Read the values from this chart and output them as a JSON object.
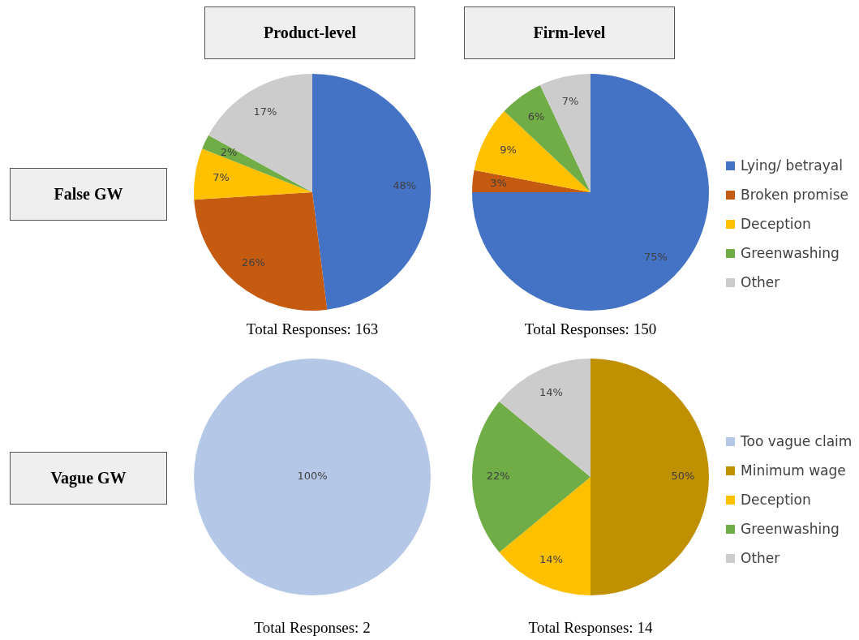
{
  "chart_data": [
    {
      "type": "pie",
      "title": "Product-level",
      "ylabel": "False GW",
      "categories": [
        null,
        null,
        null,
        null,
        null
      ],
      "values": [
        48,
        26,
        7,
        2,
        17
      ],
      "colors": [
        "#4472c4",
        "#c55a11",
        "#ffc000",
        "#70ad47",
        "#cccccc"
      ],
      "value_labels": [
        "48%",
        "26%",
        "7%",
        "2%",
        "17%"
      ],
      "annotations": [
        "Total Responses: 163"
      ]
    },
    {
      "type": "pie",
      "title": "Firm-level",
      "categories": [
        "Lying/ betrayal",
        "Broken promise",
        "Deception",
        "Greenwashing",
        "Other"
      ],
      "values": [
        75,
        3,
        9,
        6,
        7
      ],
      "colors": [
        "#4472c4",
        "#c55a11",
        "#ffc000",
        "#70ad47",
        "#cccccc"
      ],
      "value_labels": [
        "75%",
        "3%",
        "9%",
        "6%",
        "7%"
      ],
      "legend": "right",
      "annotations": [
        "Total Responses: 150"
      ]
    },
    {
      "type": "pie",
      "ylabel": "Vague GW",
      "categories": [
        null
      ],
      "values": [
        100
      ],
      "colors": [
        "#b4c7e7"
      ],
      "value_labels": [
        "100%"
      ],
      "annotations": [
        "Total Responses: 2"
      ]
    },
    {
      "type": "pie",
      "categories": [
        "Too vague claim",
        "Minimum wage",
        "Deception",
        "Greenwashing",
        "Other"
      ],
      "values": [
        0,
        50,
        14,
        22,
        14
      ],
      "colors": [
        "#b4c7e7",
        "#bf9000",
        "#ffc000",
        "#70ad47",
        "#cccccc"
      ],
      "value_labels": [
        null,
        "50%",
        "14%",
        "22%",
        "14%"
      ],
      "legend": "right",
      "annotations": [
        "Total Responses: 14"
      ]
    }
  ]
}
